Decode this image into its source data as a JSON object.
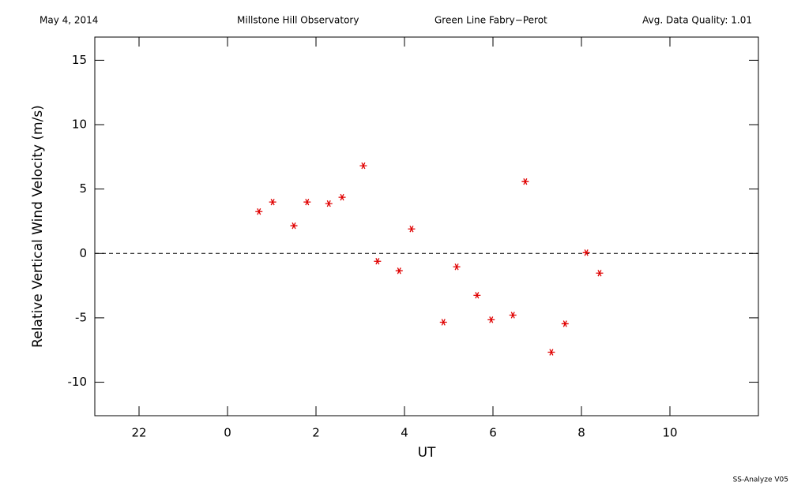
{
  "chart_data": {
    "type": "scatter",
    "header": [
      "May 4, 2014",
      "Millstone Hill Observatory",
      "Green Line Fabry−Perot",
      "Avg. Data Quality: 1.01"
    ],
    "footer": "SS-Analyze V05",
    "xlabel": "UT",
    "ylabel": "Relative Vertical Wind Velocity (m/s)",
    "xlim": [
      -3,
      12
    ],
    "ylim": [
      -12.6,
      16.8
    ],
    "xticks": [
      {
        "value": -2,
        "label": "22"
      },
      0,
      2,
      4,
      6,
      8,
      10
    ],
    "yticks": [
      -10,
      -5,
      0,
      5,
      10,
      15
    ],
    "hline": 0,
    "series": [
      {
        "color": "#e00000",
        "x": [
          0.71,
          1.02,
          1.5,
          1.8,
          2.29,
          2.59,
          3.07,
          3.39,
          3.88,
          4.16,
          4.88,
          5.18,
          5.64,
          5.96,
          6.45,
          6.73,
          7.32,
          7.63,
          8.11,
          8.41
        ],
        "values": [
          3.25,
          3.99,
          2.15,
          3.99,
          3.87,
          4.36,
          6.81,
          -0.61,
          -1.35,
          1.9,
          -5.34,
          -1.04,
          -3.25,
          -5.15,
          -4.79,
          5.58,
          -7.67,
          -5.46,
          0.06,
          -1.53
        ]
      }
    ]
  }
}
